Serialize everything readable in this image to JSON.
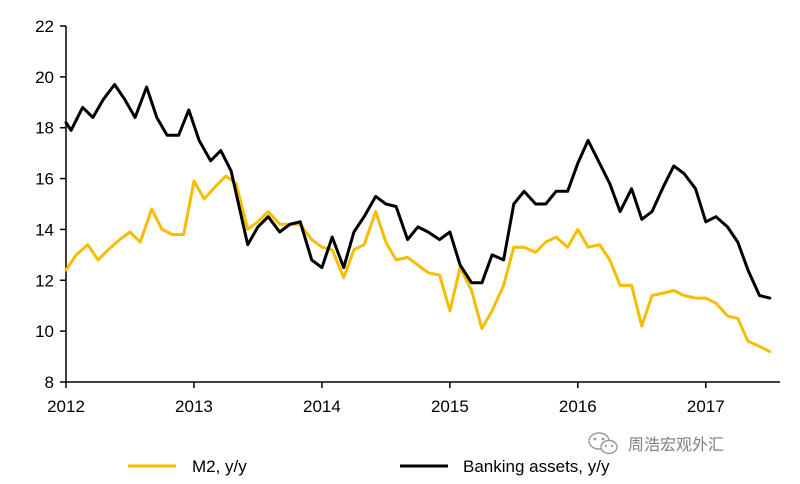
{
  "chart_data": {
    "type": "line",
    "title": "",
    "xlabel": "",
    "ylabel": "",
    "xlim": [
      2012.0,
      2017.58
    ],
    "ylim": [
      8,
      22
    ],
    "yticks": [
      8,
      10,
      12,
      14,
      16,
      18,
      20,
      22
    ],
    "xticks": [
      {
        "value": 2012,
        "label": "2012"
      },
      {
        "value": 2013,
        "label": "2013"
      },
      {
        "value": 2014,
        "label": "2014"
      },
      {
        "value": 2015,
        "label": "2015"
      },
      {
        "value": 2016,
        "label": "2016"
      },
      {
        "value": 2017,
        "label": "2017"
      }
    ],
    "grid": false,
    "legend_position": "bottom",
    "series": [
      {
        "name": "M2, y/y",
        "color": "#F5BE00",
        "points": [
          [
            2012.0,
            12.4
          ],
          [
            2012.08,
            13.0
          ],
          [
            2012.17,
            13.4
          ],
          [
            2012.25,
            12.8
          ],
          [
            2012.33,
            13.2
          ],
          [
            2012.42,
            13.6
          ],
          [
            2012.5,
            13.9
          ],
          [
            2012.58,
            13.5
          ],
          [
            2012.67,
            14.8
          ],
          [
            2012.75,
            14.0
          ],
          [
            2012.83,
            13.8
          ],
          [
            2012.92,
            13.8
          ],
          [
            2013.0,
            15.9
          ],
          [
            2013.08,
            15.2
          ],
          [
            2013.17,
            15.7
          ],
          [
            2013.25,
            16.1
          ],
          [
            2013.33,
            15.8
          ],
          [
            2013.42,
            14.0
          ],
          [
            2013.5,
            14.3
          ],
          [
            2013.58,
            14.7
          ],
          [
            2013.67,
            14.2
          ],
          [
            2013.75,
            14.2
          ],
          [
            2013.83,
            14.2
          ],
          [
            2013.92,
            13.6
          ],
          [
            2014.0,
            13.3
          ],
          [
            2014.08,
            13.2
          ],
          [
            2014.17,
            12.1
          ],
          [
            2014.25,
            13.2
          ],
          [
            2014.33,
            13.4
          ],
          [
            2014.42,
            14.7
          ],
          [
            2014.5,
            13.5
          ],
          [
            2014.58,
            12.8
          ],
          [
            2014.67,
            12.9
          ],
          [
            2014.75,
            12.6
          ],
          [
            2014.83,
            12.3
          ],
          [
            2014.92,
            12.2
          ],
          [
            2015.0,
            10.8
          ],
          [
            2015.08,
            12.5
          ],
          [
            2015.17,
            11.6
          ],
          [
            2015.25,
            10.1
          ],
          [
            2015.33,
            10.8
          ],
          [
            2015.42,
            11.8
          ],
          [
            2015.5,
            13.3
          ],
          [
            2015.58,
            13.3
          ],
          [
            2015.67,
            13.1
          ],
          [
            2015.75,
            13.5
          ],
          [
            2015.83,
            13.7
          ],
          [
            2015.92,
            13.3
          ],
          [
            2016.0,
            14.0
          ],
          [
            2016.08,
            13.3
          ],
          [
            2016.17,
            13.4
          ],
          [
            2016.25,
            12.8
          ],
          [
            2016.33,
            11.8
          ],
          [
            2016.42,
            11.8
          ],
          [
            2016.5,
            10.2
          ],
          [
            2016.58,
            11.4
          ],
          [
            2016.67,
            11.5
          ],
          [
            2016.75,
            11.6
          ],
          [
            2016.83,
            11.4
          ],
          [
            2016.92,
            11.3
          ],
          [
            2017.0,
            11.3
          ],
          [
            2017.08,
            11.1
          ],
          [
            2017.17,
            10.6
          ],
          [
            2017.25,
            10.5
          ],
          [
            2017.33,
            9.6
          ],
          [
            2017.42,
            9.4
          ],
          [
            2017.5,
            9.2
          ]
        ]
      },
      {
        "name": "Banking assets, y/y",
        "color": "#000000",
        "points": [
          [
            2012.0,
            18.2
          ],
          [
            2012.04,
            17.9
          ],
          [
            2012.13,
            18.8
          ],
          [
            2012.21,
            18.4
          ],
          [
            2012.29,
            19.1
          ],
          [
            2012.38,
            19.7
          ],
          [
            2012.46,
            19.1
          ],
          [
            2012.54,
            18.4
          ],
          [
            2012.63,
            19.6
          ],
          [
            2012.71,
            18.4
          ],
          [
            2012.79,
            17.7
          ],
          [
            2012.88,
            17.7
          ],
          [
            2012.96,
            18.7
          ],
          [
            2013.04,
            17.5
          ],
          [
            2013.13,
            16.7
          ],
          [
            2013.21,
            17.1
          ],
          [
            2013.29,
            16.3
          ],
          [
            2013.42,
            13.4
          ],
          [
            2013.5,
            14.1
          ],
          [
            2013.58,
            14.5
          ],
          [
            2013.67,
            13.9
          ],
          [
            2013.75,
            14.2
          ],
          [
            2013.83,
            14.3
          ],
          [
            2013.92,
            12.8
          ],
          [
            2014.0,
            12.5
          ],
          [
            2014.08,
            13.7
          ],
          [
            2014.17,
            12.5
          ],
          [
            2014.25,
            13.9
          ],
          [
            2014.33,
            14.5
          ],
          [
            2014.42,
            15.3
          ],
          [
            2014.5,
            15.0
          ],
          [
            2014.58,
            14.9
          ],
          [
            2014.67,
            13.6
          ],
          [
            2014.75,
            14.1
          ],
          [
            2014.83,
            13.9
          ],
          [
            2014.92,
            13.6
          ],
          [
            2015.0,
            13.9
          ],
          [
            2015.08,
            12.6
          ],
          [
            2015.17,
            11.9
          ],
          [
            2015.25,
            11.9
          ],
          [
            2015.33,
            13.0
          ],
          [
            2015.42,
            12.8
          ],
          [
            2015.5,
            15.0
          ],
          [
            2015.58,
            15.5
          ],
          [
            2015.67,
            15.0
          ],
          [
            2015.75,
            15.0
          ],
          [
            2015.83,
            15.5
          ],
          [
            2015.92,
            15.5
          ],
          [
            2016.0,
            16.6
          ],
          [
            2016.08,
            17.5
          ],
          [
            2016.17,
            16.6
          ],
          [
            2016.25,
            15.8
          ],
          [
            2016.33,
            14.7
          ],
          [
            2016.42,
            15.6
          ],
          [
            2016.5,
            14.4
          ],
          [
            2016.58,
            14.7
          ],
          [
            2016.67,
            15.7
          ],
          [
            2016.75,
            16.5
          ],
          [
            2016.83,
            16.2
          ],
          [
            2016.92,
            15.6
          ],
          [
            2017.0,
            14.3
          ],
          [
            2017.08,
            14.5
          ],
          [
            2017.17,
            14.1
          ],
          [
            2017.25,
            13.5
          ],
          [
            2017.33,
            12.4
          ],
          [
            2017.42,
            11.4
          ],
          [
            2017.5,
            11.3
          ]
        ]
      }
    ]
  },
  "watermark": {
    "text": "周浩宏观外汇",
    "icon": "wechat-icon"
  }
}
